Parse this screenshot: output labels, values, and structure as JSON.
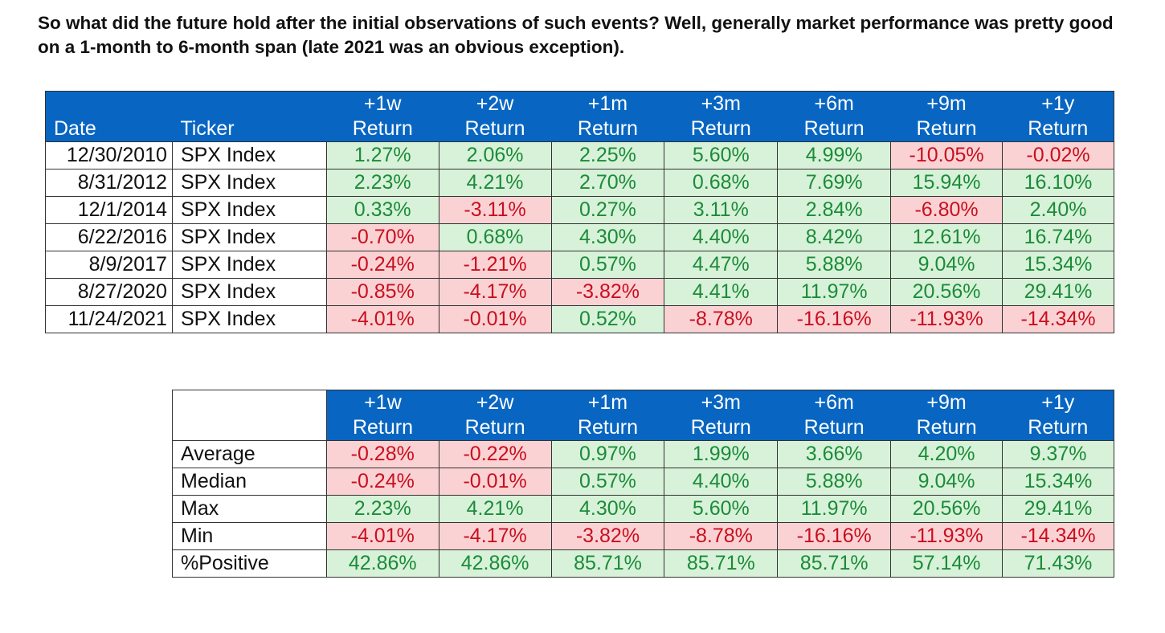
{
  "intro_text": "So what did the future hold after the initial observations of such events? Well, generally market performance was pretty good on a 1-month to 6-month span (late 2021 was an obvious exception).",
  "colors": {
    "header_blue": "#0866c2",
    "positive_bg": "#d7f2d8",
    "positive_text": "#1c8b3a",
    "negative_bg": "#fbd2d4",
    "negative_text": "#c80f1e"
  },
  "events_table": {
    "date_header": "Date",
    "ticker_header": "Ticker",
    "return_headers": [
      {
        "top": "+1w",
        "bottom": "Return"
      },
      {
        "top": "+2w",
        "bottom": "Return"
      },
      {
        "top": "+1m",
        "bottom": "Return"
      },
      {
        "top": "+3m",
        "bottom": "Return"
      },
      {
        "top": "+6m",
        "bottom": "Return"
      },
      {
        "top": "+9m",
        "bottom": "Return"
      },
      {
        "top": "+1y",
        "bottom": "Return"
      }
    ],
    "rows": [
      {
        "date": "12/30/2010",
        "ticker": "SPX Index",
        "values": [
          "1.27%",
          "2.06%",
          "2.25%",
          "5.60%",
          "4.99%",
          "-10.05%",
          "-0.02%"
        ]
      },
      {
        "date": "8/31/2012",
        "ticker": "SPX Index",
        "values": [
          "2.23%",
          "4.21%",
          "2.70%",
          "0.68%",
          "7.69%",
          "15.94%",
          "16.10%"
        ]
      },
      {
        "date": "12/1/2014",
        "ticker": "SPX Index",
        "values": [
          "0.33%",
          "-3.11%",
          "0.27%",
          "3.11%",
          "2.84%",
          "-6.80%",
          "2.40%"
        ]
      },
      {
        "date": "6/22/2016",
        "ticker": "SPX Index",
        "values": [
          "-0.70%",
          "0.68%",
          "4.30%",
          "4.40%",
          "8.42%",
          "12.61%",
          "16.74%"
        ]
      },
      {
        "date": "8/9/2017",
        "ticker": "SPX Index",
        "values": [
          "-0.24%",
          "-1.21%",
          "0.57%",
          "4.47%",
          "5.88%",
          "9.04%",
          "15.34%"
        ]
      },
      {
        "date": "8/27/2020",
        "ticker": "SPX Index",
        "values": [
          "-0.85%",
          "-4.17%",
          "-3.82%",
          "4.41%",
          "11.97%",
          "20.56%",
          "29.41%"
        ]
      },
      {
        "date": "11/24/2021",
        "ticker": "SPX Index",
        "values": [
          "-4.01%",
          "-0.01%",
          "0.52%",
          "-8.78%",
          "-16.16%",
          "-11.93%",
          "-14.34%"
        ]
      }
    ]
  },
  "summary_table": {
    "return_headers": [
      {
        "top": "+1w",
        "bottom": "Return"
      },
      {
        "top": "+2w",
        "bottom": "Return"
      },
      {
        "top": "+1m",
        "bottom": "Return"
      },
      {
        "top": "+3m",
        "bottom": "Return"
      },
      {
        "top": "+6m",
        "bottom": "Return"
      },
      {
        "top": "+9m",
        "bottom": "Return"
      },
      {
        "top": "+1y",
        "bottom": "Return"
      }
    ],
    "rows": [
      {
        "label": "Average",
        "values": [
          "-0.28%",
          "-0.22%",
          "0.97%",
          "1.99%",
          "3.66%",
          "4.20%",
          "9.37%"
        ],
        "signs": [
          "neg",
          "neg",
          "pos",
          "pos",
          "pos",
          "pos",
          "pos"
        ]
      },
      {
        "label": "Median",
        "values": [
          "-0.24%",
          "-0.01%",
          "0.57%",
          "4.40%",
          "5.88%",
          "9.04%",
          "15.34%"
        ],
        "signs": [
          "neg",
          "neg",
          "pos",
          "pos",
          "pos",
          "pos",
          "pos"
        ]
      },
      {
        "label": "Max",
        "values": [
          "2.23%",
          "4.21%",
          "4.30%",
          "5.60%",
          "11.97%",
          "20.56%",
          "29.41%"
        ],
        "signs": [
          "pos",
          "pos",
          "pos",
          "pos",
          "pos",
          "pos",
          "pos"
        ]
      },
      {
        "label": "Min",
        "values": [
          "-4.01%",
          "-4.17%",
          "-3.82%",
          "-8.78%",
          "-16.16%",
          "-11.93%",
          "-14.34%"
        ],
        "signs": [
          "neg",
          "neg",
          "neg",
          "neg",
          "neg",
          "neg",
          "neg"
        ]
      },
      {
        "label": "%Positive",
        "values": [
          "42.86%",
          "42.86%",
          "85.71%",
          "85.71%",
          "85.71%",
          "57.14%",
          "71.43%"
        ],
        "signs": [
          "pos",
          "pos",
          "pos",
          "pos",
          "pos",
          "pos",
          "pos"
        ]
      }
    ]
  }
}
